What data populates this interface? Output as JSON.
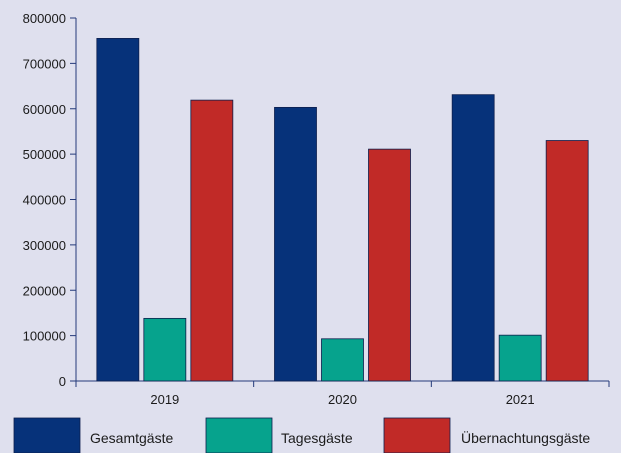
{
  "chart_data": {
    "type": "bar",
    "categories": [
      "2019",
      "2020",
      "2021"
    ],
    "series": [
      {
        "name": "Gesamtgäste",
        "values": [
          755000,
          603000,
          631000
        ],
        "color": "#06327a"
      },
      {
        "name": "Tagesgäste",
        "values": [
          138000,
          93000,
          101000
        ],
        "color": "#06a38d"
      },
      {
        "name": "Übernachtungsgäste",
        "values": [
          619000,
          511000,
          530000
        ],
        "color": "#c12a27"
      }
    ],
    "yticks": [
      "0",
      "100000",
      "200000",
      "300000",
      "400000",
      "500000",
      "600000",
      "700000",
      "800000"
    ],
    "ylim": [
      0,
      800000
    ],
    "title": "",
    "xlabel": "",
    "ylabel": "",
    "grid": false,
    "legend": "bottom"
  }
}
